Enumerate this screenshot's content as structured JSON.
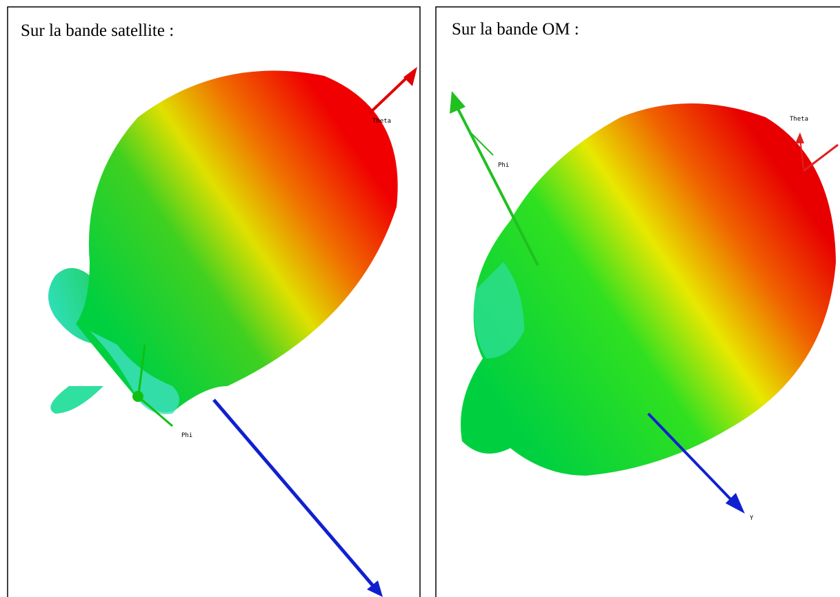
{
  "panels": [
    {
      "title": "Sur la bande satellite :",
      "labels": [
        "Theta",
        "Phi"
      ]
    },
    {
      "title": "Sur la bande OM :",
      "labels": [
        "Theta",
        "Phi",
        "Y"
      ]
    }
  ]
}
